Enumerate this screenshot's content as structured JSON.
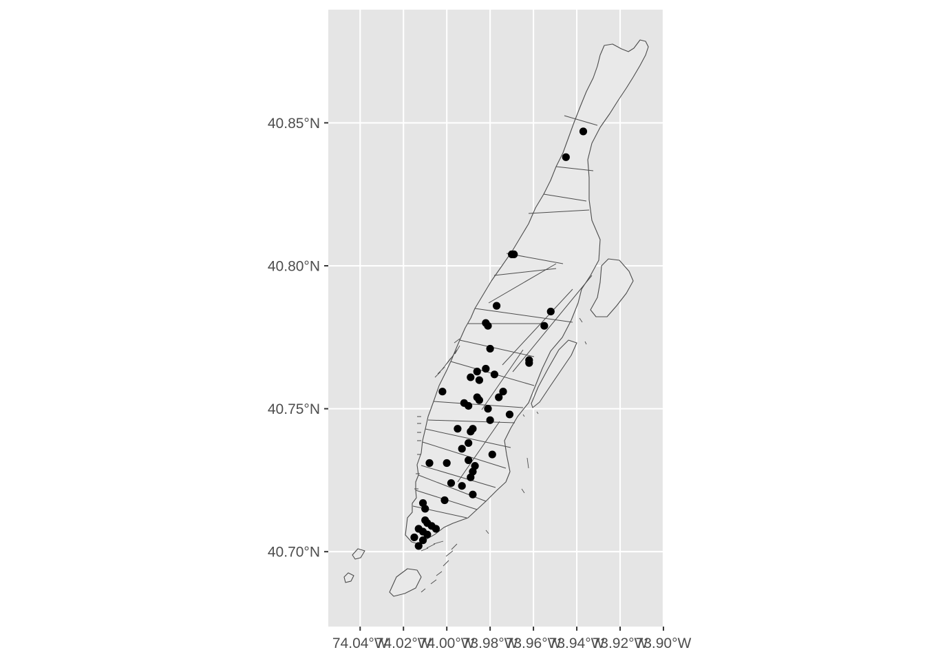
{
  "map": {
    "x_tick_labels": [
      "74.04°W",
      "74.02°W",
      "74.00°W",
      "73.98°W",
      "73.96°W",
      "73.94°W",
      "73.92°W",
      "73.90°W"
    ],
    "x_tick_values": [
      -74.04,
      -74.02,
      -74.0,
      -73.98,
      -73.96,
      -73.94,
      -73.92,
      -73.9
    ],
    "y_tick_labels": [
      "40.85°N",
      "40.80°N",
      "40.75°N",
      "40.70°N"
    ],
    "y_tick_values": [
      40.85,
      40.8,
      40.75,
      40.7
    ],
    "lon_range": [
      -74.0547,
      -73.9003
    ],
    "lat_range": [
      40.6738,
      40.8896
    ],
    "points": [
      {
        "lon": -73.937,
        "lat": 40.847
      },
      {
        "lon": -73.945,
        "lat": 40.838
      },
      {
        "lon": -73.969,
        "lat": 40.804
      },
      {
        "lon": -73.97,
        "lat": 40.804
      },
      {
        "lon": -73.977,
        "lat": 40.786
      },
      {
        "lon": -73.952,
        "lat": 40.784
      },
      {
        "lon": -73.982,
        "lat": 40.78
      },
      {
        "lon": -73.981,
        "lat": 40.779
      },
      {
        "lon": -73.955,
        "lat": 40.779
      },
      {
        "lon": -73.98,
        "lat": 40.771
      },
      {
        "lon": -73.962,
        "lat": 40.767
      },
      {
        "lon": -73.962,
        "lat": 40.766
      },
      {
        "lon": -73.982,
        "lat": 40.764
      },
      {
        "lon": -73.986,
        "lat": 40.763
      },
      {
        "lon": -73.978,
        "lat": 40.762
      },
      {
        "lon": -73.989,
        "lat": 40.761
      },
      {
        "lon": -73.985,
        "lat": 40.76
      },
      {
        "lon": -74.002,
        "lat": 40.756
      },
      {
        "lon": -73.974,
        "lat": 40.756
      },
      {
        "lon": -73.986,
        "lat": 40.754
      },
      {
        "lon": -73.985,
        "lat": 40.753
      },
      {
        "lon": -73.976,
        "lat": 40.754
      },
      {
        "lon": -73.992,
        "lat": 40.752
      },
      {
        "lon": -73.99,
        "lat": 40.751
      },
      {
        "lon": -73.981,
        "lat": 40.75
      },
      {
        "lon": -73.971,
        "lat": 40.748
      },
      {
        "lon": -73.98,
        "lat": 40.746
      },
      {
        "lon": -73.995,
        "lat": 40.743
      },
      {
        "lon": -73.988,
        "lat": 40.743
      },
      {
        "lon": -73.989,
        "lat": 40.742
      },
      {
        "lon": -73.99,
        "lat": 40.738
      },
      {
        "lon": -73.993,
        "lat": 40.736
      },
      {
        "lon": -73.979,
        "lat": 40.734
      },
      {
        "lon": -73.99,
        "lat": 40.732
      },
      {
        "lon": -74.008,
        "lat": 40.731
      },
      {
        "lon": -74.0,
        "lat": 40.731
      },
      {
        "lon": -73.987,
        "lat": 40.73
      },
      {
        "lon": -73.988,
        "lat": 40.728
      },
      {
        "lon": -73.989,
        "lat": 40.726
      },
      {
        "lon": -73.998,
        "lat": 40.724
      },
      {
        "lon": -73.993,
        "lat": 40.723
      },
      {
        "lon": -73.988,
        "lat": 40.72
      },
      {
        "lon": -74.001,
        "lat": 40.718
      },
      {
        "lon": -74.011,
        "lat": 40.717
      },
      {
        "lon": -74.01,
        "lat": 40.715
      },
      {
        "lon": -74.01,
        "lat": 40.711
      },
      {
        "lon": -74.009,
        "lat": 40.71
      },
      {
        "lon": -74.007,
        "lat": 40.709
      },
      {
        "lon": -74.005,
        "lat": 40.708
      },
      {
        "lon": -74.013,
        "lat": 40.708
      },
      {
        "lon": -74.011,
        "lat": 40.707
      },
      {
        "lon": -74.009,
        "lat": 40.706
      },
      {
        "lon": -74.015,
        "lat": 40.705
      },
      {
        "lon": -74.011,
        "lat": 40.704
      },
      {
        "lon": -74.013,
        "lat": 40.702
      }
    ]
  }
}
